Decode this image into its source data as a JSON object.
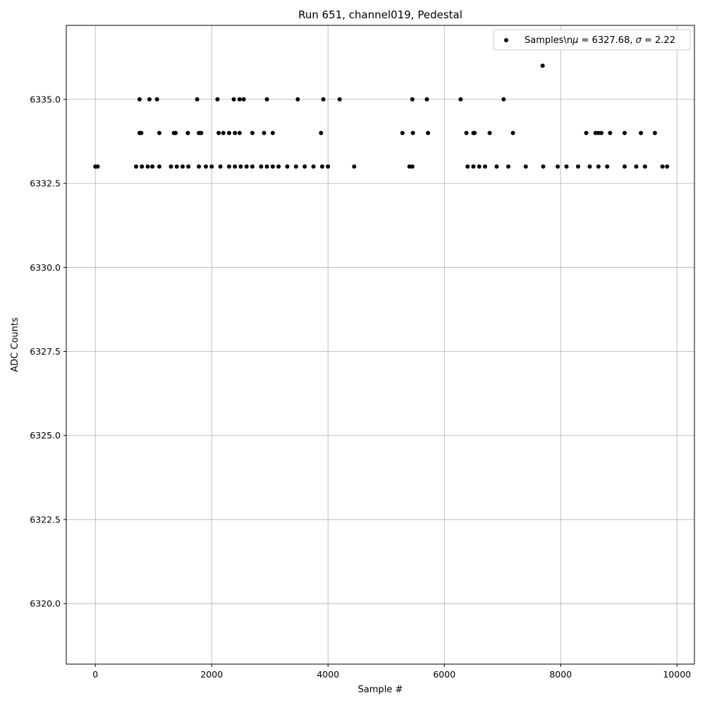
{
  "chart_data": {
    "type": "scatter",
    "title": "Run 651, channel019, Pedestal",
    "xlabel": "Sample #",
    "ylabel": "ADC Counts",
    "xlim": [
      -500,
      10300
    ],
    "ylim": [
      6318.2,
      6337.2
    ],
    "xticks": [
      0,
      2000,
      4000,
      6000,
      8000,
      10000
    ],
    "xtick_labels": [
      "0",
      "2000",
      "4000",
      "6000",
      "8000",
      "10000"
    ],
    "yticks": [
      6320.0,
      6322.5,
      6325.0,
      6327.5,
      6330.0,
      6332.5,
      6335.0
    ],
    "ytick_labels": [
      "6320.0",
      "6322.5",
      "6325.0",
      "6327.5",
      "6330.0",
      "6332.5",
      "6335.0"
    ],
    "grid": true,
    "legend_position": "top-right",
    "marker_color": "#000000",
    "series": [
      {
        "name": "Samples\\n𝜇 = 6327.68, 𝜎 = 2.22",
        "legend_label": "Samples\\n",
        "legend_mu": "μ",
        "legend_rest": " = 6327.68, ",
        "legend_sigma": "σ",
        "legend_end": " = 2.22",
        "points": [
          [
            7690,
            6336
          ],
          [
            760,
            6335
          ],
          [
            930,
            6335
          ],
          [
            1060,
            6335
          ],
          [
            1750,
            6335
          ],
          [
            2100,
            6335
          ],
          [
            2380,
            6335
          ],
          [
            2480,
            6335
          ],
          [
            2550,
            6335
          ],
          [
            2950,
            6335
          ],
          [
            3480,
            6335
          ],
          [
            3920,
            6335
          ],
          [
            4200,
            6335
          ],
          [
            5450,
            6335
          ],
          [
            5700,
            6335
          ],
          [
            6280,
            6335
          ],
          [
            7020,
            6335
          ],
          [
            760,
            6334
          ],
          [
            790,
            6334
          ],
          [
            1100,
            6334
          ],
          [
            1350,
            6334
          ],
          [
            1380,
            6334
          ],
          [
            1590,
            6334
          ],
          [
            1780,
            6334
          ],
          [
            1820,
            6334
          ],
          [
            2120,
            6334
          ],
          [
            2200,
            6334
          ],
          [
            2300,
            6334
          ],
          [
            2400,
            6334
          ],
          [
            2480,
            6334
          ],
          [
            2700,
            6334
          ],
          [
            2900,
            6334
          ],
          [
            3050,
            6334
          ],
          [
            3880,
            6334
          ],
          [
            5280,
            6334
          ],
          [
            5460,
            6334
          ],
          [
            5720,
            6334
          ],
          [
            6380,
            6334
          ],
          [
            6500,
            6334
          ],
          [
            6520,
            6334
          ],
          [
            6780,
            6334
          ],
          [
            7180,
            6334
          ],
          [
            8440,
            6334
          ],
          [
            8600,
            6334
          ],
          [
            8650,
            6334
          ],
          [
            8700,
            6334
          ],
          [
            8850,
            6334
          ],
          [
            9100,
            6334
          ],
          [
            9380,
            6334
          ],
          [
            9620,
            6334
          ],
          [
            0,
            6333
          ],
          [
            40,
            6333
          ],
          [
            700,
            6333
          ],
          [
            800,
            6333
          ],
          [
            900,
            6333
          ],
          [
            980,
            6333
          ],
          [
            1100,
            6333
          ],
          [
            1300,
            6333
          ],
          [
            1400,
            6333
          ],
          [
            1500,
            6333
          ],
          [
            1600,
            6333
          ],
          [
            1780,
            6333
          ],
          [
            1900,
            6333
          ],
          [
            2000,
            6333
          ],
          [
            2150,
            6333
          ],
          [
            2300,
            6333
          ],
          [
            2400,
            6333
          ],
          [
            2500,
            6333
          ],
          [
            2600,
            6333
          ],
          [
            2700,
            6333
          ],
          [
            2850,
            6333
          ],
          [
            2950,
            6333
          ],
          [
            3050,
            6333
          ],
          [
            3150,
            6333
          ],
          [
            3300,
            6333
          ],
          [
            3450,
            6333
          ],
          [
            3600,
            6333
          ],
          [
            3750,
            6333
          ],
          [
            3900,
            6333
          ],
          [
            4000,
            6333
          ],
          [
            4450,
            6333
          ],
          [
            5400,
            6333
          ],
          [
            5450,
            6333
          ],
          [
            6400,
            6333
          ],
          [
            6500,
            6333
          ],
          [
            6600,
            6333
          ],
          [
            6700,
            6333
          ],
          [
            6900,
            6333
          ],
          [
            7100,
            6333
          ],
          [
            7400,
            6333
          ],
          [
            7700,
            6333
          ],
          [
            7950,
            6333
          ],
          [
            8100,
            6333
          ],
          [
            8300,
            6333
          ],
          [
            8500,
            6333
          ],
          [
            8650,
            6333
          ],
          [
            8800,
            6333
          ],
          [
            9100,
            6333
          ],
          [
            9300,
            6333
          ],
          [
            9450,
            6333
          ],
          [
            9750,
            6333
          ],
          [
            9830,
            6333
          ]
        ]
      }
    ]
  }
}
